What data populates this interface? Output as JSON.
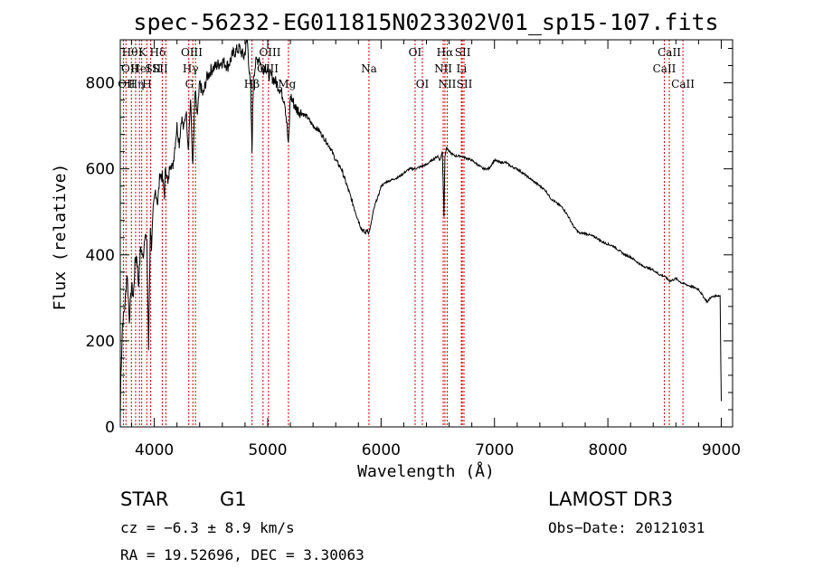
{
  "chart_data": {
    "type": "line",
    "title": "spec-56232-EG011815N023302V01_sp15-107.fits",
    "xlabel": "Wavelength (Å)",
    "ylabel": "Flux (relative)",
    "xlim": [
      3700,
      9100
    ],
    "ylim": [
      0,
      900
    ],
    "xticks": [
      4000,
      5000,
      6000,
      7000,
      8000,
      9000
    ],
    "yticks": [
      0,
      200,
      400,
      600,
      800
    ],
    "series": [
      {
        "name": "flux",
        "x": [
          3700,
          3705,
          3720,
          3740,
          3760,
          3780,
          3800,
          3815,
          3830,
          3845,
          3860,
          3880,
          3900,
          3920,
          3935,
          3950,
          3965,
          3975,
          3990,
          4010,
          4030,
          4050,
          4070,
          4090,
          4100,
          4120,
          4140,
          4160,
          4180,
          4200,
          4220,
          4240,
          4260,
          4280,
          4300,
          4320,
          4340,
          4360,
          4380,
          4400,
          4430,
          4460,
          4500,
          4550,
          4600,
          4650,
          4700,
          4750,
          4790,
          4820,
          4850,
          4861,
          4875,
          4900,
          4925,
          4950,
          4980,
          5010,
          5050,
          5100,
          5150,
          5170,
          5183,
          5200,
          5250,
          5300,
          5350,
          5400,
          5450,
          5500,
          5550,
          5600,
          5650,
          5700,
          5750,
          5800,
          5830,
          5860,
          5880,
          5893,
          5910,
          5930,
          5950,
          5980,
          6000,
          6050,
          6100,
          6150,
          6200,
          6250,
          6300,
          6350,
          6400,
          6450,
          6500,
          6520,
          6540,
          6555,
          6563,
          6570,
          6580,
          6600,
          6650,
          6700,
          6750,
          6800,
          6850,
          6900,
          6950,
          7000,
          7050,
          7100,
          7150,
          7200,
          7250,
          7300,
          7350,
          7400,
          7450,
          7500,
          7550,
          7600,
          7650,
          7700,
          7750,
          7800,
          7850,
          7900,
          7950,
          8000,
          8050,
          8100,
          8150,
          8200,
          8250,
          8300,
          8350,
          8400,
          8450,
          8500,
          8540,
          8560,
          8600,
          8650,
          8700,
          8750,
          8800,
          8850,
          8880,
          8900,
          8950,
          8990,
          9000
        ],
        "y": [
          10,
          120,
          240,
          280,
          360,
          250,
          330,
          300,
          380,
          400,
          330,
          420,
          390,
          460,
          420,
          180,
          470,
          420,
          500,
          550,
          520,
          590,
          580,
          540,
          610,
          560,
          620,
          600,
          650,
          700,
          660,
          720,
          690,
          740,
          650,
          760,
          600,
          780,
          720,
          800,
          770,
          810,
          830,
          840,
          850,
          840,
          870,
          880,
          860,
          900,
          780,
          640,
          820,
          850,
          860,
          830,
          840,
          820,
          810,
          790,
          760,
          700,
          650,
          770,
          740,
          730,
          720,
          700,
          690,
          670,
          650,
          620,
          600,
          560,
          520,
          480,
          460,
          450,
          460,
          450,
          470,
          500,
          520,
          540,
          560,
          570,
          575,
          580,
          590,
          600,
          600,
          605,
          610,
          620,
          630,
          620,
          640,
          490,
          630,
          640,
          650,
          640,
          630,
          630,
          625,
          620,
          610,
          600,
          600,
          620,
          615,
          615,
          605,
          600,
          590,
          580,
          570,
          560,
          550,
          530,
          520,
          510,
          490,
          465,
          450,
          450,
          445,
          440,
          430,
          425,
          420,
          410,
          400,
          395,
          385,
          375,
          370,
          365,
          355,
          350,
          340,
          340,
          345,
          335,
          330,
          325,
          320,
          300,
          290,
          300,
          305,
          305,
          60
        ]
      }
    ],
    "lines": [
      {
        "x": 3727,
        "label": "OII",
        "row": 2,
        "label_x": 3755
      },
      {
        "x": 3750,
        "label": "Hθ",
        "row": 0,
        "label_x": 3785
      },
      {
        "x": 3798,
        "label": "OII",
        "row": 1,
        "label_x": 3785
      },
      {
        "x": 3835,
        "label": "Hη",
        "row": 2,
        "label_x": 3840
      },
      {
        "x": 3869,
        "label": "HeI",
        "row": 1,
        "label_x": 3880
      },
      {
        "x": 3889,
        "label": "K",
        "row": 0,
        "label_x": 3895
      },
      {
        "x": 3934,
        "label": "H",
        "row": 2,
        "label_x": 3935
      },
      {
        "x": 3968,
        "label": "SII",
        "row": 1,
        "label_x": 3990
      },
      {
        "x": 4102,
        "label": "Hδ",
        "row": 0,
        "label_x": 4030
      },
      {
        "x": 4070,
        "label": "SII",
        "row": 1,
        "label_x": 4050
      },
      {
        "x": 4304,
        "label": "G",
        "row": 2,
        "label_x": 4310
      },
      {
        "x": 4340,
        "label": "Hγ",
        "row": 1,
        "label_x": 4320
      },
      {
        "x": 4363,
        "label": "OIII",
        "row": 0,
        "label_x": 4330
      },
      {
        "x": 4861,
        "label": "Hβ",
        "row": 2,
        "label_x": 4860
      },
      {
        "x": 4959,
        "label": "OIII",
        "row": 0,
        "label_x": 5020
      },
      {
        "x": 5007,
        "label": "OIII",
        "row": 1,
        "label_x": 5000
      },
      {
        "x": 5183,
        "label": "Mg",
        "row": 2,
        "label_x": 5170
      },
      {
        "x": 5893,
        "label": "Na",
        "row": 1,
        "label_x": 5893
      },
      {
        "x": 6300,
        "label": "OI",
        "row": 0,
        "label_x": 6300
      },
      {
        "x": 6364,
        "label": "OI",
        "row": 2,
        "label_x": 6364
      },
      {
        "x": 6548,
        "label": "NII",
        "row": 1,
        "label_x": 6548
      },
      {
        "x": 6563,
        "label": "Hα",
        "row": 0,
        "label_x": 6563
      },
      {
        "x": 6583,
        "label": "NII",
        "row": 2,
        "label_x": 6583
      },
      {
        "x": 6708,
        "label": "Li",
        "row": 1,
        "label_x": 6710
      },
      {
        "x": 6716,
        "label": "SII",
        "row": 0,
        "label_x": 6720
      },
      {
        "x": 6731,
        "label": "SII",
        "row": 2,
        "label_x": 6735
      },
      {
        "x": 8498,
        "label": "CaII",
        "row": 1,
        "label_x": 8498
      },
      {
        "x": 8542,
        "label": "CaII",
        "row": 0,
        "label_x": 8542
      },
      {
        "x": 8662,
        "label": "CaII",
        "row": 2,
        "label_x": 8662
      }
    ],
    "line_color": "#cc0000"
  },
  "info": {
    "class": "STAR",
    "subclass": "G1",
    "survey": "LAMOST DR3",
    "cz": "cz = −6.3 ± 8.9 km/s",
    "obs_date": "Obs−Date: 20121031",
    "coords": "RA =  19.52696, DEC =    3.30063"
  }
}
